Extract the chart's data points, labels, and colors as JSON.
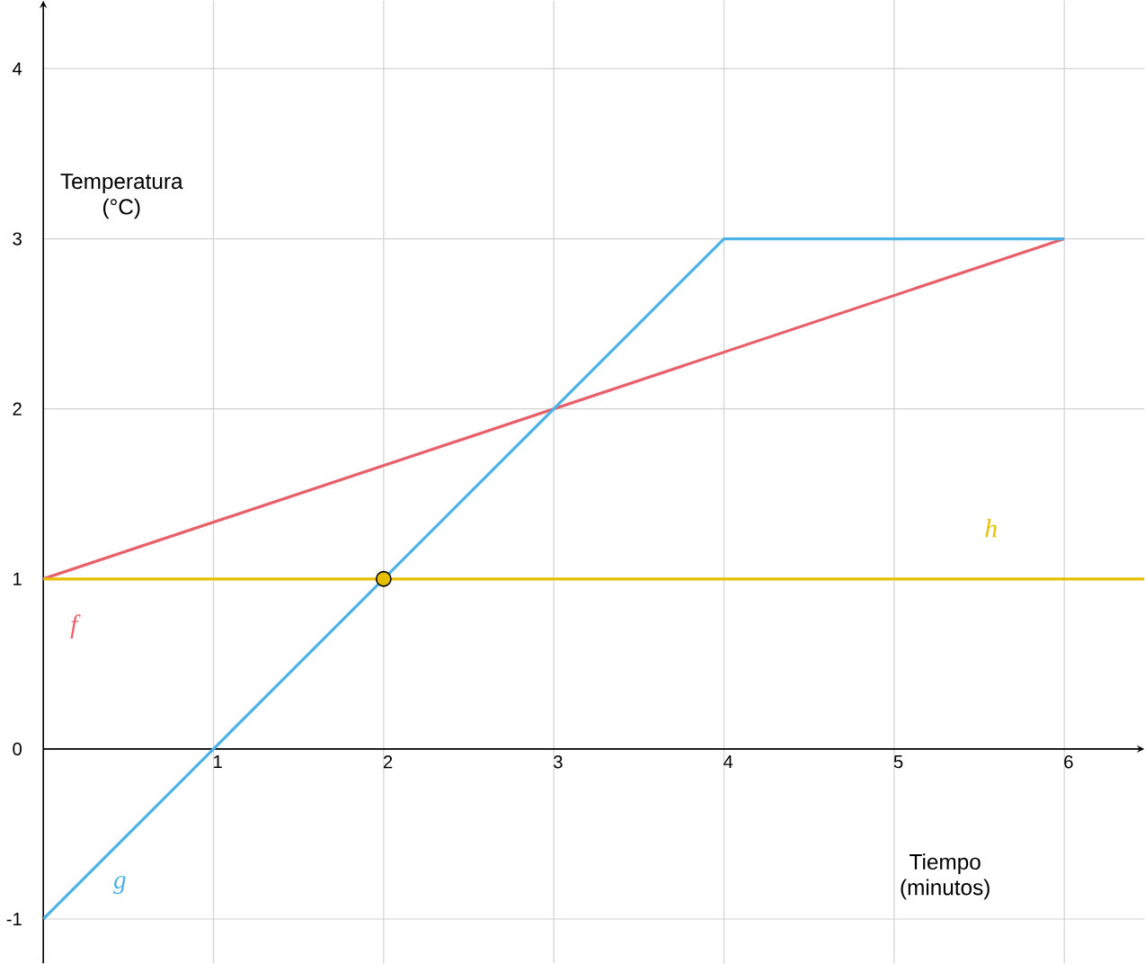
{
  "chart_data": {
    "type": "line",
    "xlabel": "Tiempo (minutos)",
    "ylabel": "Temperatura (°C)",
    "xlim": [
      0,
      6.47
    ],
    "ylim": [
      -1.26,
      4.4
    ],
    "xticks": [
      1,
      2,
      3,
      4,
      5,
      6
    ],
    "yticks": [
      -1,
      0,
      1,
      2,
      3,
      4
    ],
    "grid": true,
    "line_style": "solid",
    "series": [
      {
        "name": "f",
        "color": "#e8606a",
        "x": [
          0,
          6
        ],
        "values": [
          1,
          3
        ]
      },
      {
        "name": "g",
        "color": "#4db3e6",
        "x": [
          0,
          4,
          6
        ],
        "values": [
          -1,
          3,
          3
        ]
      },
      {
        "name": "h",
        "color": "#e6c000",
        "x": [
          0,
          6.47
        ],
        "values": [
          1,
          1
        ]
      },
      {
        "type": "scatter",
        "color": "#e6c000",
        "x": [
          2
        ],
        "values": [
          1
        ]
      }
    ]
  }
}
